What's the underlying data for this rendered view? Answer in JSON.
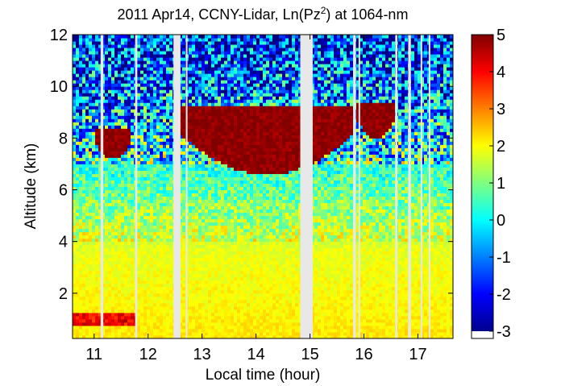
{
  "chart_data": {
    "type": "heatmap",
    "title": {
      "prefix": "2011 Apr14, CCNY-Lidar, Ln(Pz",
      "superscript": "2",
      "suffix": ") at 1064-nm"
    },
    "xlabel": "Local time (hour)",
    "ylabel": "Altitude (km)",
    "xlim": [
      10.6,
      17.65
    ],
    "ylim": [
      0.25,
      12
    ],
    "x_ticks": [
      11,
      12,
      13,
      14,
      15,
      16,
      17
    ],
    "y_ticks": [
      2,
      4,
      6,
      8,
      10,
      12
    ],
    "colorbar": {
      "range": [
        -3,
        5
      ],
      "ticks": [
        5,
        4,
        3,
        2,
        1,
        0,
        -1,
        -2,
        -3
      ],
      "colormap": "jet"
    },
    "grid": false,
    "data_gaps_hours": [
      [
        11.12,
        11.17
      ],
      [
        11.76,
        11.8
      ],
      [
        12.47,
        12.6
      ],
      [
        12.7,
        12.73
      ],
      [
        14.82,
        15.05
      ],
      [
        15.8,
        15.85
      ],
      [
        15.9,
        15.93
      ],
      [
        16.58,
        16.62
      ],
      [
        16.82,
        16.87
      ],
      [
        17.05,
        17.08
      ],
      [
        17.2,
        17.22
      ]
    ],
    "features": {
      "boundary_layer_top_km": 3.5,
      "near_surface_layer_km": [
        0.8,
        1.2
      ],
      "cirrus_layers": [
        {
          "start_hour": 11.0,
          "end_hour": 11.7,
          "base_km": 7.2,
          "top_km": 8.4
        },
        {
          "start_hour": 12.6,
          "end_hour": 15.8,
          "base_km": 6.6,
          "top_km": 9.2
        },
        {
          "start_hour": 15.85,
          "end_hour": 16.6,
          "base_km": 8.0,
          "top_km": 9.4
        }
      ]
    }
  }
}
